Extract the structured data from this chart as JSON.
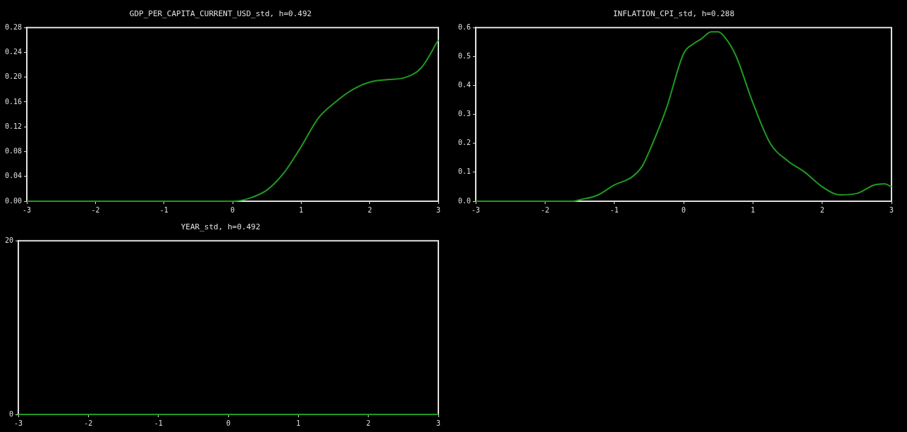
{
  "chart_data": [
    {
      "type": "line",
      "title": "GDP_PER_CAPITA_CURRENT_USD_std, h=0.492",
      "grid": false,
      "x": [
        -3,
        -2,
        -1,
        0,
        0.25,
        0.5,
        0.75,
        1,
        1.25,
        1.5,
        1.75,
        2,
        2.25,
        2.5,
        2.75,
        3
      ],
      "series": [
        {
          "color": "#1f9a1f",
          "values": [
            0,
            0,
            0,
            0,
            0.005,
            0.018,
            0.046,
            0.088,
            0.134,
            0.16,
            0.18,
            0.192,
            0.196,
            0.199,
            0.215,
            0.26
          ]
        }
      ],
      "xlim": [
        -3,
        3
      ],
      "xticks": [
        -3,
        -2,
        -1,
        0,
        1,
        2,
        3
      ],
      "ylim": [
        0,
        0.28
      ],
      "yticks": [
        {
          "value": 0,
          "label": "0.00"
        },
        {
          "value": 0.04,
          "label": "0.04"
        },
        {
          "value": 0.08,
          "label": "0.08"
        },
        {
          "value": 0.12,
          "label": "0.12"
        },
        {
          "value": 0.16,
          "label": "0.16"
        },
        {
          "value": 0.2,
          "label": "0.20"
        },
        {
          "value": 0.24,
          "label": "0.24"
        },
        {
          "value": 0.28,
          "label": "0.28"
        }
      ]
    },
    {
      "type": "line",
      "title": "INFLATION_CPI_std, h=0.288",
      "grid": false,
      "x": [
        -3,
        -2,
        -1.6,
        -1.5,
        -1.25,
        -1,
        -0.75,
        -0.6,
        -0.5,
        -0.25,
        0,
        0.15,
        0.25,
        0.4,
        0.5,
        0.6,
        0.75,
        1,
        1.25,
        1.5,
        1.75,
        2,
        2.25,
        2.5,
        2.75,
        2.9,
        3
      ],
      "series": [
        {
          "color": "#1f9a1f",
          "values": [
            0,
            0,
            0,
            0.005,
            0.02,
            0.056,
            0.083,
            0.12,
            0.17,
            0.32,
            0.51,
            0.545,
            0.56,
            0.585,
            0.585,
            0.565,
            0.505,
            0.34,
            0.2,
            0.14,
            0.1,
            0.05,
            0.022,
            0.027,
            0.056,
            0.06,
            0.05
          ]
        }
      ],
      "xlim": [
        -3,
        3
      ],
      "xticks": [
        -3,
        -2,
        -1,
        0,
        1,
        2,
        3
      ],
      "ylim": [
        0,
        0.6
      ],
      "yticks": [
        {
          "value": 0,
          "label": "0.0"
        },
        {
          "value": 0.1,
          "label": "0.1"
        },
        {
          "value": 0.2,
          "label": "0.2"
        },
        {
          "value": 0.3,
          "label": "0.3"
        },
        {
          "value": 0.4,
          "label": "0.4"
        },
        {
          "value": 0.5,
          "label": "0.5"
        },
        {
          "value": 0.6,
          "label": "0.6"
        }
      ]
    },
    {
      "type": "line",
      "title": "YEAR_std, h=0.492",
      "grid": false,
      "x": [
        -3,
        -2,
        -1,
        0,
        1,
        2,
        3
      ],
      "series": [
        {
          "color": "#1f9a1f",
          "values": [
            0,
            0,
            0,
            0,
            0,
            0,
            0
          ]
        }
      ],
      "xlim": [
        -3,
        3
      ],
      "xticks": [
        -3,
        -2,
        -1,
        0,
        1,
        2,
        3
      ],
      "ylim": [
        0,
        20
      ],
      "yticks": [
        0,
        20
      ]
    }
  ]
}
